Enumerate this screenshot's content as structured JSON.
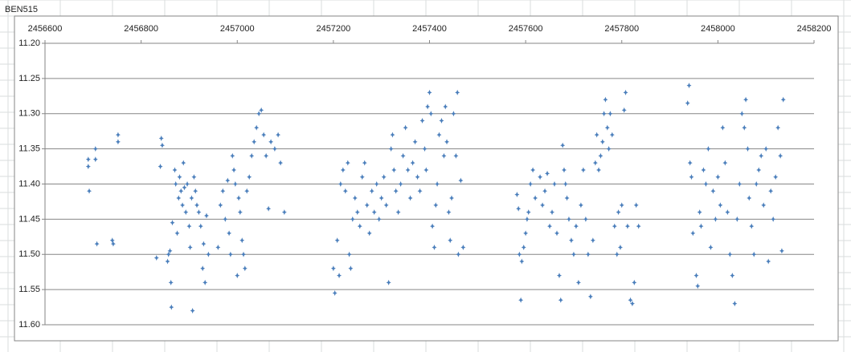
{
  "chart_data": {
    "type": "scatter",
    "title": "BEN515",
    "color": "#4a7ebb",
    "xlim": [
      2456600,
      2458200
    ],
    "xticks": [
      2456600,
      2456800,
      2457000,
      2457200,
      2457400,
      2457600,
      2457800,
      2458000,
      2458200
    ],
    "ylim": [
      11.2,
      11.6
    ],
    "y_inverted": true,
    "x_axis_position": "top",
    "grid": true,
    "yticks": [
      {
        "value": 11.2,
        "label": "11.20"
      },
      {
        "value": 11.25,
        "label": "11.25"
      },
      {
        "value": 11.3,
        "label": "11.30"
      },
      {
        "value": 11.35,
        "label": "11.35"
      },
      {
        "value": 11.4,
        "label": "11.40"
      },
      {
        "value": 11.45,
        "label": "11.45"
      },
      {
        "value": 11.5,
        "label": "11.50"
      },
      {
        "value": 11.55,
        "label": "11.55"
      },
      {
        "value": 11.6,
        "label": "11.60"
      }
    ],
    "x": [
      2456690,
      2456690,
      2456692,
      2456705,
      2456705,
      2456708,
      2456740,
      2456742,
      2456752,
      2456752,
      2456832,
      2456840,
      2456842,
      2456844,
      2456855,
      2456857,
      2456860,
      2456862,
      2456863,
      2456865,
      2456870,
      2456872,
      2456875,
      2456878,
      2456880,
      2456883,
      2456886,
      2456888,
      2456890,
      2456893,
      2456896,
      2456900,
      2456902,
      2456905,
      2456907,
      2456910,
      2456913,
      2456916,
      2456920,
      2456924,
      2456928,
      2456930,
      2456933,
      2456936,
      2456940,
      2456960,
      2456965,
      2456970,
      2456975,
      2456980,
      2456983,
      2456986,
      2456990,
      2456993,
      2456996,
      2457000,
      2457003,
      2457006,
      2457010,
      2457013,
      2457016,
      2457020,
      2457025,
      2457030,
      2457035,
      2457040,
      2457045,
      2457050,
      2457055,
      2457060,
      2457065,
      2457070,
      2457078,
      2457085,
      2457090,
      2457098,
      2457200,
      2457203,
      2457208,
      2457212,
      2457215,
      2457220,
      2457225,
      2457230,
      2457233,
      2457236,
      2457240,
      2457245,
      2457250,
      2457255,
      2457260,
      2457265,
      2457270,
      2457275,
      2457280,
      2457285,
      2457290,
      2457295,
      2457300,
      2457305,
      2457310,
      2457315,
      2457320,
      2457323,
      2457326,
      2457330,
      2457335,
      2457340,
      2457345,
      2457350,
      2457355,
      2457360,
      2457365,
      2457370,
      2457375,
      2457380,
      2457385,
      2457390,
      2457393,
      2457396,
      2457400,
      2457403,
      2457406,
      2457410,
      2457413,
      2457416,
      2457420,
      2457425,
      2457430,
      2457433,
      2457436,
      2457440,
      2457443,
      2457446,
      2457450,
      2457455,
      2457458,
      2457460,
      2457465,
      2457470,
      2457582,
      2457585,
      2457587,
      2457590,
      2457592,
      2457596,
      2457600,
      2457603,
      2457606,
      2457610,
      2457615,
      2457620,
      2457630,
      2457635,
      2457640,
      2457645,
      2457650,
      2457655,
      2457660,
      2457665,
      2457670,
      2457673,
      2457677,
      2457680,
      2457683,
      2457686,
      2457690,
      2457695,
      2457700,
      2457705,
      2457710,
      2457715,
      2457720,
      2457725,
      2457730,
      2457735,
      2457740,
      2457745,
      2457748,
      2457752,
      2457756,
      2457760,
      2457763,
      2457766,
      2457770,
      2457773,
      2457776,
      2457780,
      2457785,
      2457790,
      2457793,
      2457797,
      2457800,
      2457805,
      2457808,
      2457812,
      2457818,
      2457822,
      2457826,
      2457830,
      2457835,
      2457937,
      2457940,
      2457942,
      2457945,
      2457948,
      2457955,
      2457958,
      2457962,
      2457965,
      2457970,
      2457975,
      2457980,
      2457985,
      2457990,
      2457995,
      2458000,
      2458005,
      2458010,
      2458015,
      2458020,
      2458025,
      2458030,
      2458035,
      2458040,
      2458045,
      2458050,
      2458055,
      2458058,
      2458062,
      2458065,
      2458070,
      2458075,
      2458080,
      2458085,
      2458090,
      2458095,
      2458100,
      2458105,
      2458110,
      2458115,
      2458120,
      2458125,
      2458130,
      2458133,
      2458136
    ],
    "values": [
      11.365,
      11.375,
      11.41,
      11.35,
      11.365,
      11.485,
      11.48,
      11.485,
      11.33,
      11.34,
      11.505,
      11.375,
      11.335,
      11.345,
      11.51,
      11.5,
      11.495,
      11.54,
      11.575,
      11.455,
      11.38,
      11.4,
      11.47,
      11.42,
      11.39,
      11.41,
      11.43,
      11.37,
      11.405,
      11.44,
      11.4,
      11.46,
      11.49,
      11.42,
      11.58,
      11.39,
      11.41,
      11.43,
      11.44,
      11.46,
      11.52,
      11.485,
      11.54,
      11.445,
      11.5,
      11.49,
      11.43,
      11.41,
      11.45,
      11.395,
      11.47,
      11.5,
      11.36,
      11.38,
      11.4,
      11.53,
      11.42,
      11.44,
      11.48,
      11.5,
      11.52,
      11.41,
      11.39,
      11.36,
      11.34,
      11.32,
      11.3,
      11.295,
      11.33,
      11.36,
      11.435,
      11.34,
      11.35,
      11.33,
      11.37,
      11.44,
      11.52,
      11.555,
      11.48,
      11.53,
      11.4,
      11.38,
      11.41,
      11.37,
      11.5,
      11.52,
      11.45,
      11.42,
      11.44,
      11.46,
      11.39,
      11.37,
      11.43,
      11.47,
      11.41,
      11.44,
      11.4,
      11.45,
      11.42,
      11.39,
      11.43,
      11.54,
      11.35,
      11.33,
      11.38,
      11.41,
      11.44,
      11.4,
      11.36,
      11.32,
      11.38,
      11.42,
      11.37,
      11.34,
      11.39,
      11.41,
      11.31,
      11.35,
      11.38,
      11.29,
      11.27,
      11.3,
      11.46,
      11.49,
      11.43,
      11.4,
      11.33,
      11.31,
      11.36,
      11.29,
      11.34,
      11.44,
      11.48,
      11.42,
      11.3,
      11.36,
      11.27,
      11.5,
      11.395,
      11.49,
      11.415,
      11.435,
      11.5,
      11.565,
      11.51,
      11.49,
      11.47,
      11.45,
      11.44,
      11.4,
      11.38,
      11.42,
      11.39,
      11.43,
      11.41,
      11.385,
      11.46,
      11.44,
      11.4,
      11.47,
      11.53,
      11.565,
      11.345,
      11.38,
      11.4,
      11.42,
      11.45,
      11.48,
      11.5,
      11.46,
      11.54,
      11.43,
      11.38,
      11.45,
      11.5,
      11.56,
      11.48,
      11.37,
      11.33,
      11.38,
      11.36,
      11.34,
      11.3,
      11.28,
      11.32,
      11.35,
      11.3,
      11.33,
      11.46,
      11.5,
      11.44,
      11.49,
      11.43,
      11.295,
      11.27,
      11.46,
      11.565,
      11.57,
      11.54,
      11.43,
      11.46,
      11.285,
      11.26,
      11.37,
      11.39,
      11.47,
      11.53,
      11.545,
      11.44,
      11.46,
      11.38,
      11.4,
      11.35,
      11.49,
      11.41,
      11.45,
      11.39,
      11.43,
      11.32,
      11.37,
      11.44,
      11.5,
      11.53,
      11.57,
      11.45,
      11.4,
      11.3,
      11.32,
      11.28,
      11.35,
      11.42,
      11.46,
      11.5,
      11.4,
      11.38,
      11.36,
      11.43,
      11.35,
      11.51,
      11.41,
      11.45,
      11.39,
      11.32,
      11.36,
      11.495,
      11.28
    ]
  }
}
